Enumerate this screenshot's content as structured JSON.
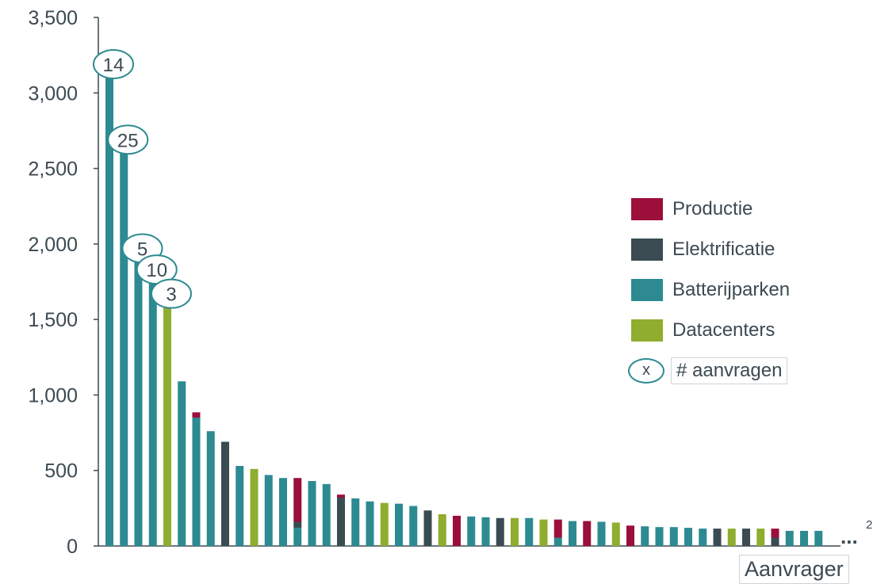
{
  "chart_data": {
    "type": "bar",
    "stacked": true,
    "xlabel": "Aanvrager",
    "ylabel": "",
    "ylim": [
      0,
      3500
    ],
    "yticks": [
      "0",
      "500",
      "1,000",
      "1,500",
      "2,000",
      "2,500",
      "3,000",
      "3,500"
    ],
    "ytick_values": [
      0,
      500,
      1000,
      1500,
      2000,
      2500,
      3000,
      3500
    ],
    "colors": {
      "Productie": "#9b0f3a",
      "Elektrificatie": "#3a4b52",
      "Batterijparken": "#2d8a91",
      "Datacenters": "#8fad2e"
    },
    "series_order": [
      "Batterijparken",
      "Datacenters",
      "Elektrificatie",
      "Productie"
    ],
    "bars": [
      {
        "Batterijparken": 3180,
        "label": "14"
      },
      {
        "Batterijparken": 2680,
        "label": "25"
      },
      {
        "Batterijparken": 1960,
        "label": "5"
      },
      {
        "Batterijparken": 1820,
        "label": "10"
      },
      {
        "Batterijparken": 0,
        "Datacenters": 1660,
        "label": "3"
      },
      {
        "Batterijparken": 1090
      },
      {
        "Batterijparken": 850,
        "Productie": 35
      },
      {
        "Batterijparken": 760
      },
      {
        "Elektrificatie": 690
      },
      {
        "Batterijparken": 530
      },
      {
        "Datacenters": 510
      },
      {
        "Batterijparken": 470
      },
      {
        "Batterijparken": 450
      },
      {
        "Batterijparken": 120,
        "Elektrificatie": 40,
        "Productie": 290
      },
      {
        "Batterijparken": 430
      },
      {
        "Batterijparken": 410
      },
      {
        "Elektrificatie": 320,
        "Productie": 20
      },
      {
        "Batterijparken": 315
      },
      {
        "Batterijparken": 295
      },
      {
        "Datacenters": 285
      },
      {
        "Batterijparken": 280
      },
      {
        "Batterijparken": 265
      },
      {
        "Elektrificatie": 235
      },
      {
        "Datacenters": 210
      },
      {
        "Productie": 200
      },
      {
        "Batterijparken": 195
      },
      {
        "Batterijparken": 190
      },
      {
        "Elektrificatie": 185
      },
      {
        "Datacenters": 185
      },
      {
        "Batterijparken": 185
      },
      {
        "Datacenters": 175
      },
      {
        "Batterijparken": 55,
        "Productie": 120
      },
      {
        "Batterijparken": 165
      },
      {
        "Productie": 165
      },
      {
        "Batterijparken": 160
      },
      {
        "Datacenters": 155
      },
      {
        "Productie": 135
      },
      {
        "Batterijparken": 130
      },
      {
        "Batterijparken": 125
      },
      {
        "Batterijparken": 125
      },
      {
        "Batterijparken": 120
      },
      {
        "Batterijparken": 115
      },
      {
        "Elektrificatie": 115
      },
      {
        "Datacenters": 115
      },
      {
        "Elektrificatie": 115
      },
      {
        "Datacenters": 115
      },
      {
        "Elektrificatie": 55,
        "Productie": 60
      },
      {
        "Batterijparken": 100
      },
      {
        "Batterijparken": 100
      },
      {
        "Batterijparken": 100
      }
    ],
    "legend": {
      "items": [
        "Productie",
        "Elektrificatie",
        "Batterijparken",
        "Datacenters"
      ],
      "bubble_symbol": "x",
      "bubble_label": "# aanvragen"
    },
    "trailing_ellipsis": "...",
    "footnote": "2"
  }
}
